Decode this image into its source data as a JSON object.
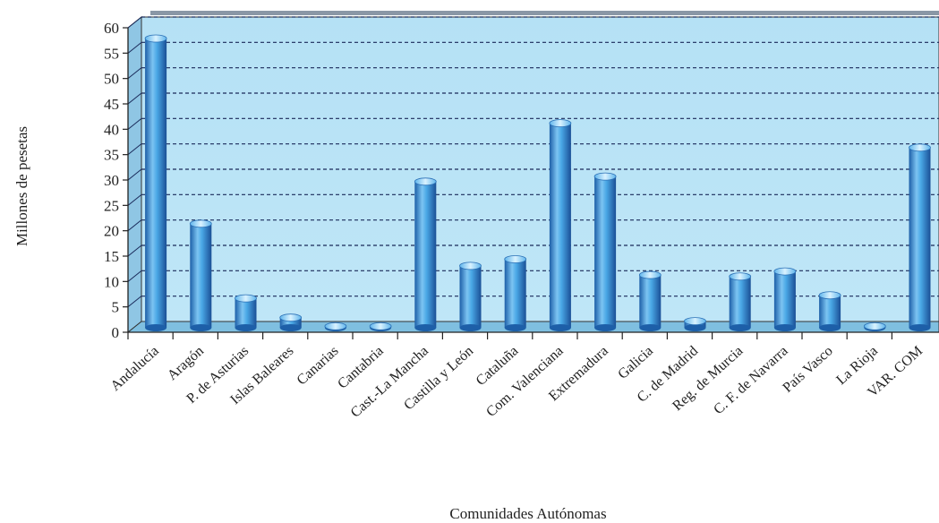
{
  "chart_data": {
    "type": "bar",
    "ylabel": "Millones de pesetas",
    "xlabel": "Comunidades Autónomas",
    "ylim": [
      0,
      60
    ],
    "yticks": [
      0,
      5,
      10,
      15,
      20,
      25,
      30,
      35,
      40,
      45,
      50,
      55,
      60
    ],
    "grid": true,
    "categories": [
      "Andalucía",
      "Aragón",
      "P. de Asturias",
      "Islas Baleares",
      "Canarias",
      "Cantabria",
      "Cast.-La Mancha",
      "Castilla y León",
      "Cataluña",
      "Com. Valenciana",
      "Extremadura",
      "Galicia",
      "C. de Madrid",
      "Reg. de Murcia",
      "C. F. de Navarra",
      "País Vasco",
      "La Rioja",
      "VAR. COM"
    ],
    "values": [
      57,
      20.5,
      5.8,
      2,
      0.3,
      0.3,
      28.8,
      12.2,
      13.5,
      40.3,
      29.8,
      10.4,
      1.3,
      10.1,
      11.1,
      6.4,
      0.3,
      35.5
    ],
    "colors": {
      "background": "#b8e2f4",
      "bar_light": "#cfeefd",
      "bar_mid": "#4aa8e6",
      "bar_dark": "#1d5fa8",
      "grid": "#1a2a5a"
    }
  }
}
